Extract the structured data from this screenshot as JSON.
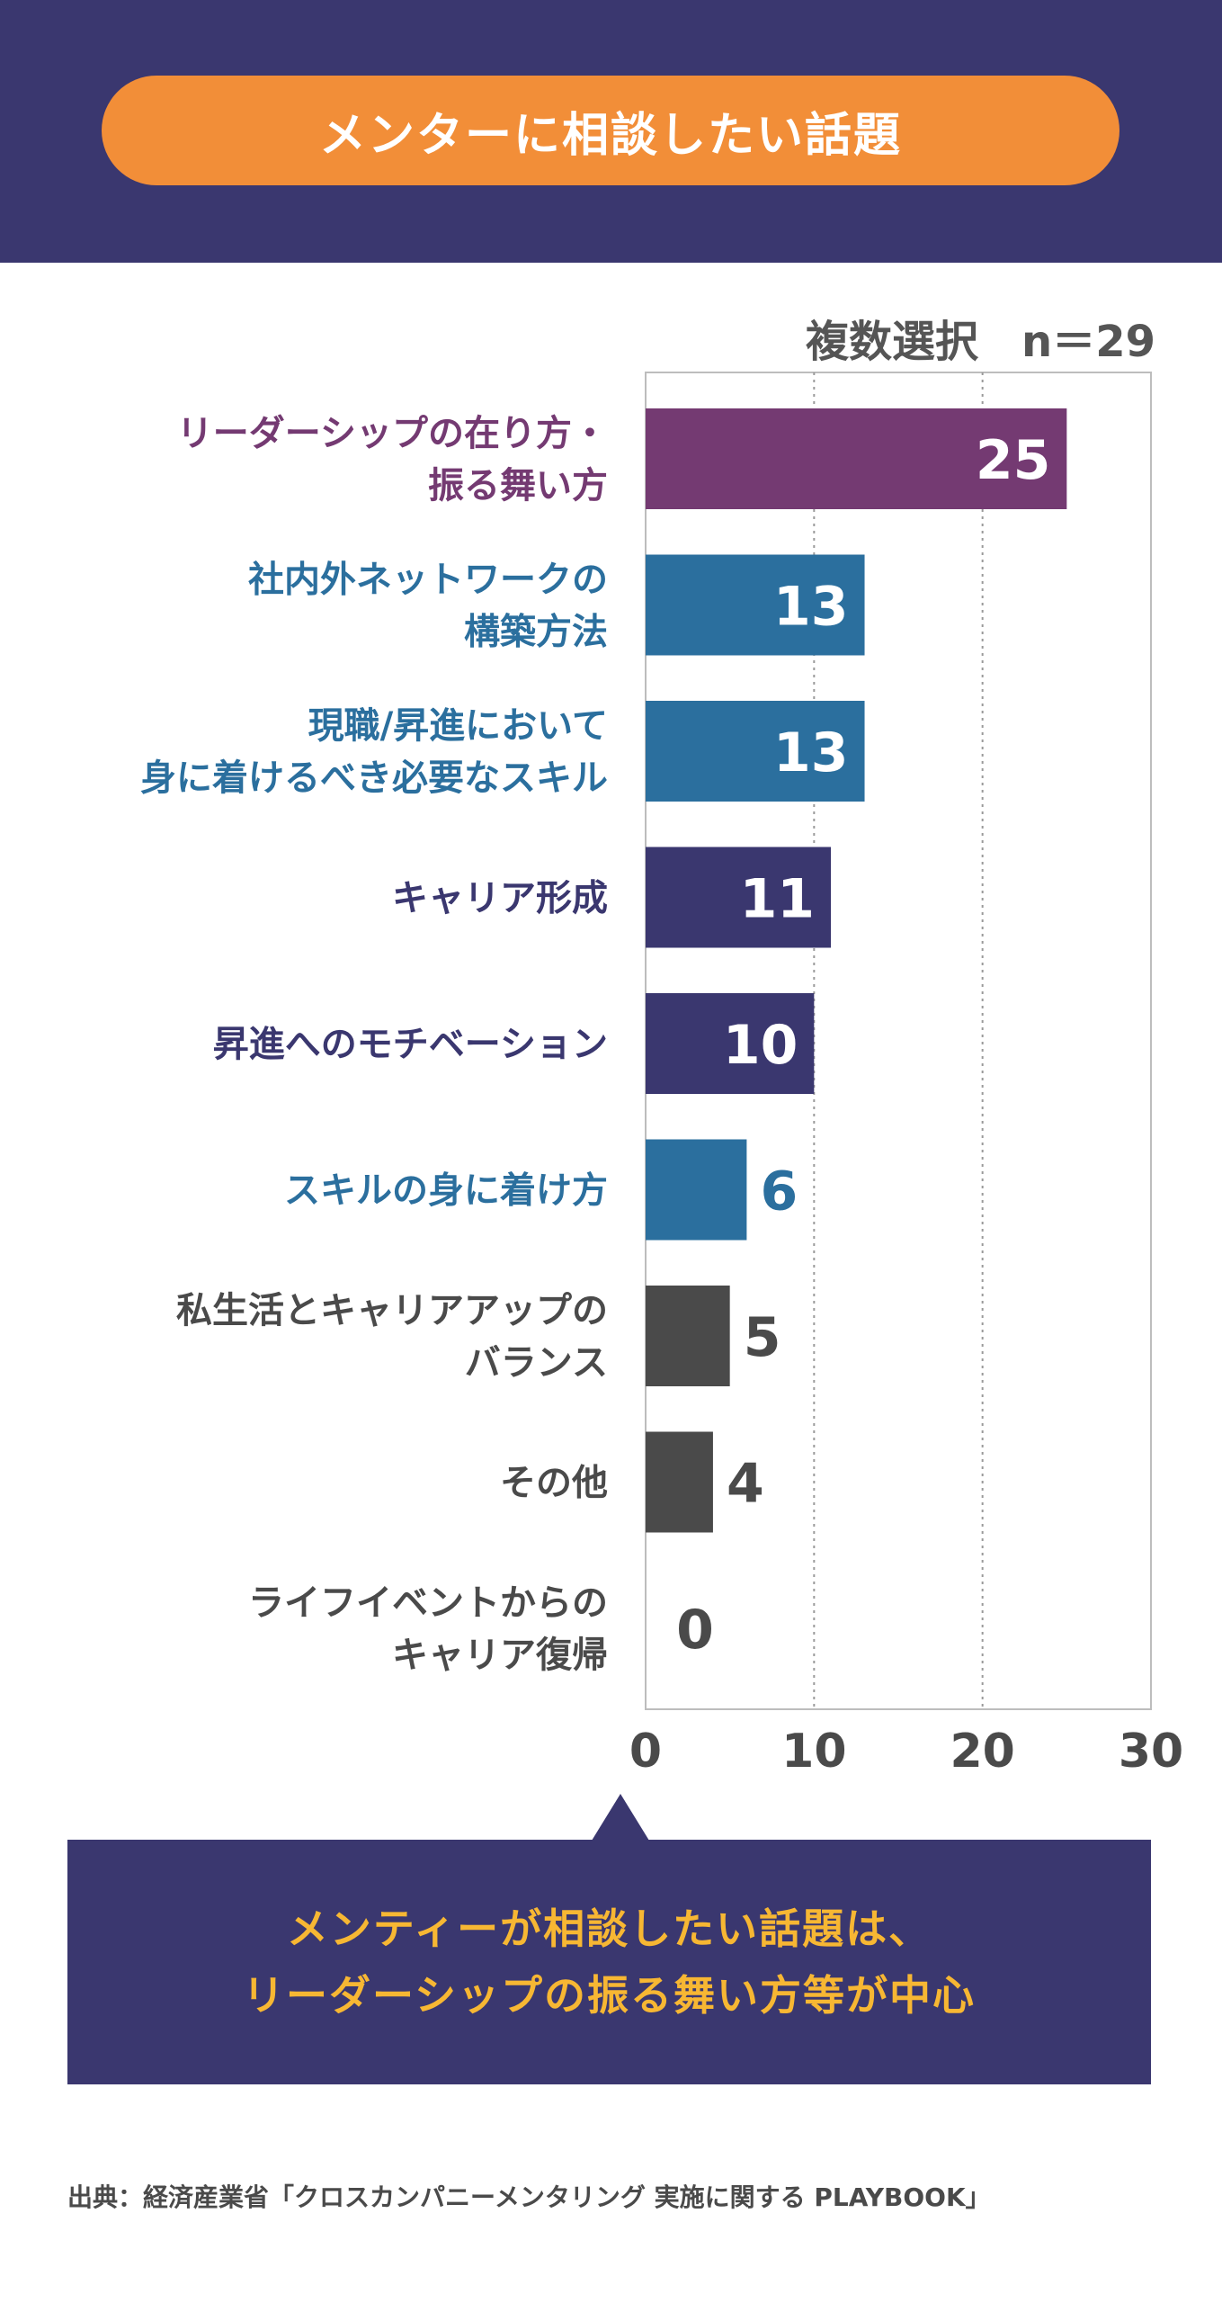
{
  "title": "メンターに相談したい話題",
  "note": "複数選択　n＝29",
  "chart_data": {
    "type": "bar",
    "orientation": "horizontal",
    "categories": [
      [
        "リーダーシップの在り方・",
        "振る舞い方"
      ],
      [
        "社内外ネットワークの",
        "構築方法"
      ],
      [
        "現職/昇進において",
        "身に着けるべき必要なスキル"
      ],
      [
        "キャリア形成"
      ],
      [
        "昇進へのモチベーション"
      ],
      [
        "スキルの身に着け方"
      ],
      [
        "私生活とキャリアアップの",
        "バランス"
      ],
      [
        "その他"
      ],
      [
        "ライフイベントからの",
        "キャリア復帰"
      ]
    ],
    "values": [
      25,
      13,
      13,
      11,
      10,
      6,
      5,
      4,
      0
    ],
    "colors": [
      "#743a72",
      "#2b6f9e",
      "#2b6f9e",
      "#3a376f",
      "#3a376f",
      "#2b6f9e",
      "#4a4a4a",
      "#4a4a4a",
      "#4a4a4a"
    ],
    "label_colors": [
      "#743a72",
      "#2b6f9e",
      "#2b6f9e",
      "#3a376f",
      "#3a376f",
      "#2b6f9e",
      "#4a4a4a",
      "#4a4a4a",
      "#4a4a4a"
    ],
    "xlim": [
      0,
      30
    ],
    "xticks": [
      "0",
      "10",
      "20",
      "30"
    ],
    "gridlines": [
      10,
      20
    ],
    "grid": true
  },
  "callout": {
    "line1": "メンティーが相談したい話題は、",
    "line2": "リーダーシップの振る舞い方等が中心"
  },
  "source": "出典：経済産業省「クロスカンパニーメンタリング 実施に関する PLAYBOOK」"
}
